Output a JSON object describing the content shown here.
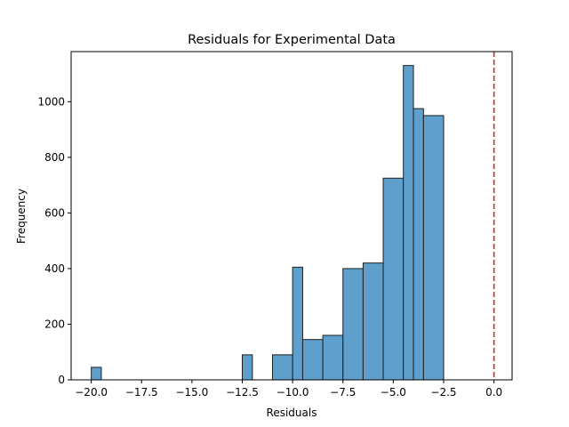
{
  "chart_data": {
    "type": "bar",
    "title": "Residuals for Experimental Data",
    "xlabel": "Residuals",
    "ylabel": "Frequency",
    "xlim": [
      -21.0,
      0.9
    ],
    "ylim": [
      0,
      1180
    ],
    "xticks": [
      -20.0,
      -17.5,
      -15.0,
      -12.5,
      -10.0,
      -7.5,
      -5.0,
      -2.5,
      0.0
    ],
    "xtick_labels": [
      "−20.0",
      "−17.5",
      "−15.0",
      "−12.5",
      "−10.0",
      "−7.5",
      "−5.0",
      "−2.5",
      "0.0"
    ],
    "yticks": [
      0,
      200,
      400,
      600,
      800,
      1000
    ],
    "ytick_labels": [
      "0",
      "200",
      "400",
      "600",
      "800",
      "1000"
    ],
    "bins": [
      {
        "x0": -20.0,
        "x1": -19.5,
        "count": 45
      },
      {
        "x0": -19.5,
        "x1": -12.5,
        "count": 0
      },
      {
        "x0": -12.5,
        "x1": -12.0,
        "count": 90
      },
      {
        "x0": -12.0,
        "x1": -11.0,
        "count": 0
      },
      {
        "x0": -11.0,
        "x1": -10.0,
        "count": 90
      },
      {
        "x0": -10.0,
        "x1": -9.5,
        "count": 405
      },
      {
        "x0": -9.5,
        "x1": -8.5,
        "count": 145
      },
      {
        "x0": -8.5,
        "x1": -7.5,
        "count": 160
      },
      {
        "x0": -7.5,
        "x1": -6.5,
        "count": 400
      },
      {
        "x0": -6.5,
        "x1": -5.5,
        "count": 420
      },
      {
        "x0": -5.5,
        "x1": -4.5,
        "count": 725
      },
      {
        "x0": -4.5,
        "x1": -4.0,
        "count": 1130
      },
      {
        "x0": -4.0,
        "x1": -3.5,
        "count": 975
      },
      {
        "x0": -3.5,
        "x1": -2.5,
        "count": 950
      }
    ],
    "reference_line": {
      "x": 0.0,
      "style": "dashed",
      "color": "#d62728"
    },
    "bar_color": "#5f9fcc",
    "bar_edge_color": "#1f1f1f",
    "grid": false,
    "legend": "none"
  }
}
